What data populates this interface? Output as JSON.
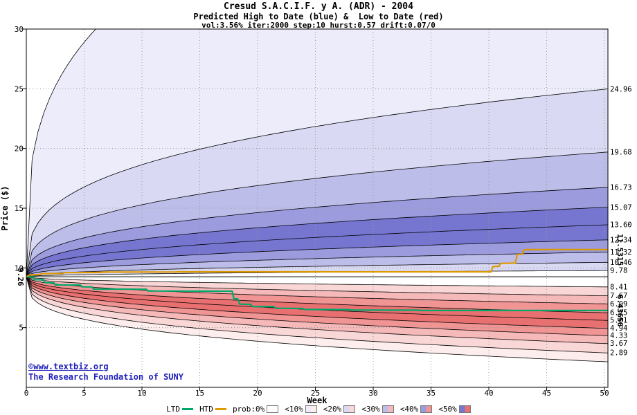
{
  "watermark": {
    "line1": "©www.textbiz.org",
    "line2": "The Research Foundation of SUNY",
    "color": "#2020bb"
  },
  "legend": {
    "ltd_label": "LTD",
    "htd_label": "HTD",
    "prob_items": [
      {
        "label": "prob:0%",
        "prob": 0
      },
      {
        "label": "<10%",
        "prob": 10
      },
      {
        "label": "<20%",
        "prob": 20
      },
      {
        "label": "<30%",
        "prob": 30
      },
      {
        "label": "<40%",
        "prob": 40
      },
      {
        "label": "<50%",
        "prob": 50
      }
    ]
  },
  "chart_data": {
    "type": "area",
    "title": "Cresud S.A.C.I.F. y A. (ADR) - 2004",
    "subtitle": "Predicted High to Date (blue) &  Low to Date (red)",
    "params_line": "vol:3.56% iter:2000 step:10 hurst:0.57 drift:0.07/0",
    "xlabel": "Week",
    "ylabel": "Price ($)",
    "xlim": [
      0,
      50.3
    ],
    "ylim": [
      0,
      30
    ],
    "xticks": [
      0,
      5,
      10,
      15,
      20,
      25,
      30,
      35,
      40,
      45,
      50
    ],
    "yticks": [
      5,
      10,
      15,
      20,
      25,
      30
    ],
    "grid": true,
    "start_price": 9.26,
    "start_price_label": "9.26",
    "high_to_date": {
      "color_family": "blue",
      "extreme_exit_week": 6.5,
      "percentile_ends": [
        24.96,
        19.68,
        16.73,
        15.07,
        13.6,
        12.34,
        11.32,
        10.46,
        9.78
      ],
      "end_labels": [
        "24.96",
        "19.68",
        "16.73",
        "15.07",
        "13.60",
        "12.34",
        "11.32",
        "10.46",
        "9.78"
      ]
    },
    "low_to_date": {
      "color_family": "red",
      "extreme_end": 2.15,
      "percentile_ends": [
        8.41,
        7.67,
        6.99,
        6.25,
        5.61,
        4.94,
        4.33,
        3.67,
        2.89
      ],
      "end_labels": [
        "8.41",
        "7.67",
        "6.99",
        "6.25",
        "5.61",
        "4.94",
        "4.33",
        "3.67",
        "2.89"
      ]
    },
    "band_probabilities_outer_to_inner": [
      10,
      20,
      30,
      40,
      50,
      50,
      40,
      30,
      20
    ],
    "shade_colors": {
      "blue": {
        "10": "#ececfa",
        "20": "#d9d9f3",
        "30": "#bdbdea",
        "40": "#9b9bde",
        "50": "#7676d0"
      },
      "red": {
        "10": "#fdeded",
        "20": "#fad7d7",
        "30": "#f6b9b9",
        "40": "#f09494",
        "50": "#e97070"
      }
    },
    "curve_exponent_base": 0.3,
    "curve_exponent_step": 0.02,
    "htd_line": {
      "name": "HTD",
      "color": "#dd9900",
      "final_value": 11.5315,
      "final_label": "11.5315",
      "points": [
        [
          0,
          9.26
        ],
        [
          0.3,
          9.42
        ],
        [
          1.2,
          9.44
        ],
        [
          1.3,
          9.52
        ],
        [
          3.2,
          9.54
        ],
        [
          3.3,
          9.6
        ],
        [
          6.5,
          9.62
        ],
        [
          6.6,
          9.65
        ],
        [
          13,
          9.66
        ],
        [
          13.1,
          9.67
        ],
        [
          40.2,
          9.67
        ],
        [
          40.35,
          10.12
        ],
        [
          40.9,
          10.14
        ],
        [
          41.0,
          10.38
        ],
        [
          42.3,
          10.4
        ],
        [
          42.45,
          11.12
        ],
        [
          42.9,
          11.14
        ],
        [
          43.0,
          11.5
        ],
        [
          43.4,
          11.5315
        ],
        [
          50.3,
          11.5315
        ]
      ]
    },
    "ltd_line": {
      "name": "LTD",
      "color": "#00a86b",
      "final_value": 6.43656,
      "final_label": "6.43656",
      "points": [
        [
          0,
          9.26
        ],
        [
          0.6,
          9.24
        ],
        [
          0.7,
          9.02
        ],
        [
          1.5,
          9.0
        ],
        [
          1.6,
          8.76
        ],
        [
          2.4,
          8.74
        ],
        [
          2.5,
          8.58
        ],
        [
          4.7,
          8.56
        ],
        [
          4.8,
          8.42
        ],
        [
          5.7,
          8.41
        ],
        [
          5.8,
          8.23
        ],
        [
          10.4,
          8.21
        ],
        [
          10.5,
          8.07
        ],
        [
          17.8,
          8.05
        ],
        [
          17.95,
          7.42
        ],
        [
          18.3,
          7.4
        ],
        [
          18.45,
          6.97
        ],
        [
          19.4,
          6.95
        ],
        [
          19.55,
          6.77
        ],
        [
          21.4,
          6.75
        ],
        [
          21.55,
          6.62
        ],
        [
          23.9,
          6.6
        ],
        [
          24.05,
          6.52
        ],
        [
          27.9,
          6.51
        ],
        [
          28.05,
          6.47
        ],
        [
          33.9,
          6.46
        ],
        [
          34.05,
          6.437
        ],
        [
          50.3,
          6.43656
        ]
      ]
    }
  }
}
